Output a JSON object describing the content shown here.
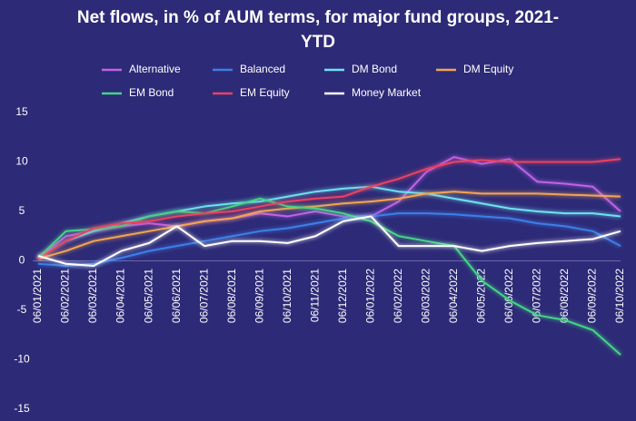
{
  "chart_data": {
    "type": "line",
    "title": "Net flows, in % of AUM terms, for major fund groups, 2021-YTD",
    "categories": [
      "06/01/2021",
      "06/02/2021",
      "06/03/2021",
      "06/04/2021",
      "06/05/2021",
      "06/06/2021",
      "06/07/2021",
      "06/08/2021",
      "06/09/2021",
      "06/10/2021",
      "06/11/2021",
      "06/12/2021",
      "06/01/2022",
      "06/02/2022",
      "06/03/2022",
      "06/04/2022",
      "06/05/2022",
      "06/06/2022",
      "06/07/2022",
      "06/08/2022",
      "06/09/2022",
      "06/10/2022"
    ],
    "series": [
      {
        "name": "Alternative",
        "color": "#c062e6",
        "values": [
          0.3,
          2.5,
          3.0,
          3.5,
          3.8,
          3.5,
          4.0,
          4.3,
          4.8,
          4.5,
          5.0,
          4.5,
          4.5,
          6.0,
          9.0,
          10.5,
          9.8,
          10.3,
          8.0,
          7.8,
          7.5,
          5.0
        ]
      },
      {
        "name": "Balanced",
        "color": "#3c7fe6",
        "values": [
          -0.3,
          -0.5,
          -0.3,
          0.3,
          1.0,
          1.5,
          2.0,
          2.5,
          3.0,
          3.3,
          3.8,
          4.3,
          4.5,
          4.8,
          4.8,
          4.7,
          4.5,
          4.3,
          3.8,
          3.5,
          3.0,
          1.5
        ]
      },
      {
        "name": "DM Bond",
        "color": "#6ee2f2",
        "values": [
          0.3,
          2.0,
          3.0,
          3.8,
          4.5,
          5.0,
          5.5,
          5.8,
          6.0,
          6.5,
          7.0,
          7.3,
          7.5,
          7.0,
          6.8,
          6.3,
          5.8,
          5.3,
          5.0,
          4.8,
          4.8,
          4.5
        ]
      },
      {
        "name": "DM Equity",
        "color": "#f2a552",
        "values": [
          0.2,
          1.0,
          2.0,
          2.5,
          3.0,
          3.5,
          4.0,
          4.3,
          5.0,
          5.3,
          5.5,
          5.8,
          6.0,
          6.3,
          6.8,
          7.0,
          6.8,
          6.8,
          6.8,
          6.7,
          6.6,
          6.5
        ]
      },
      {
        "name": "EM Bond",
        "color": "#44d585",
        "values": [
          0.3,
          3.0,
          3.2,
          3.5,
          4.5,
          5.0,
          4.8,
          5.5,
          6.3,
          5.5,
          5.3,
          4.8,
          4.0,
          2.5,
          2.0,
          1.5,
          -2.0,
          -4.0,
          -5.5,
          -6.0,
          -7.0,
          -9.5
        ]
      },
      {
        "name": "EM Equity",
        "color": "#ea4262",
        "values": [
          0.2,
          2.0,
          3.3,
          3.8,
          4.0,
          4.5,
          4.8,
          5.0,
          5.5,
          6.0,
          6.3,
          6.5,
          7.5,
          8.3,
          9.3,
          10.0,
          10.2,
          10.0,
          10.0,
          10.0,
          10.0,
          10.3
        ]
      },
      {
        "name": "Money Market",
        "color": "#ffffff",
        "values": [
          0.5,
          -0.3,
          -0.5,
          1.0,
          1.8,
          3.5,
          1.5,
          2.0,
          2.0,
          1.8,
          2.5,
          4.0,
          4.5,
          1.5,
          1.5,
          1.5,
          1.0,
          1.5,
          1.8,
          2.0,
          2.2,
          3.0
        ]
      }
    ],
    "ylim": [
      -15,
      15
    ],
    "yticks": [
      -15,
      -10,
      -5,
      0,
      5,
      10,
      15
    ],
    "grid": false
  }
}
